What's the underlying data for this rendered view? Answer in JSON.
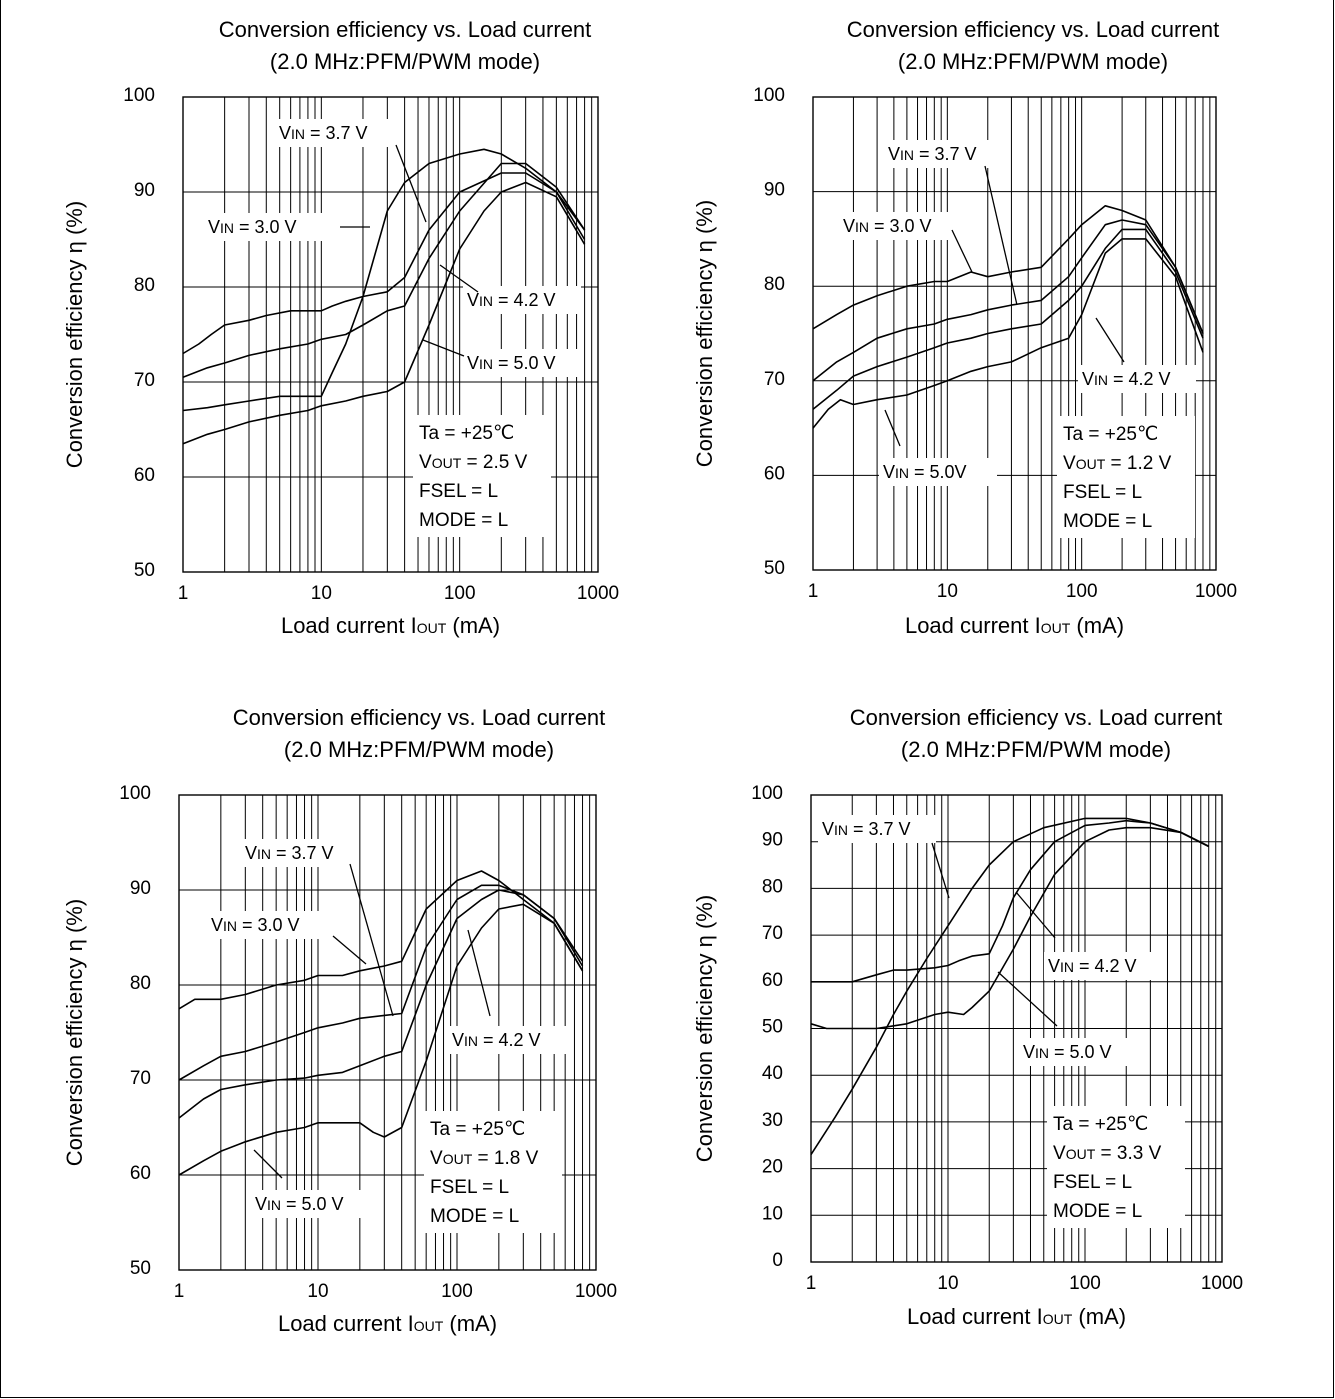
{
  "chart_data": [
    {
      "type": "line",
      "title": "Conversion efficiency vs. Load current",
      "subtitle": "(2.0 MHz:PFM/PWM mode)",
      "xlabel": "Load current IOUT (mA)",
      "xlabel_parts": {
        "pre": "Load current I",
        "sub": "OUT",
        "post": " (mA)"
      },
      "ylabel": "Conversion efficiency η (%)",
      "x_scale": "log",
      "xlim": [
        1,
        1000
      ],
      "ylim": [
        50,
        100
      ],
      "x_ticks": [
        1,
        10,
        100,
        1000
      ],
      "x_tick_labels": [
        "1",
        "10",
        "100",
        "1000"
      ],
      "y_ticks": [
        50,
        60,
        70,
        80,
        90,
        100
      ],
      "y_tick_labels": [
        "50",
        "60",
        "70",
        "80",
        "90",
        "100"
      ],
      "grid": true,
      "conditions": [
        {
          "pre": "Ta = +25℃",
          "sub": "",
          "post": ""
        },
        {
          "pre": "V",
          "sub": "OUT",
          "post": " = 2.5 V"
        },
        {
          "pre": "FSEL = L",
          "sub": "",
          "post": ""
        },
        {
          "pre": "MODE = L",
          "sub": "",
          "post": ""
        }
      ],
      "series": [
        {
          "name": "VIN = 3.0 V",
          "label": {
            "pre": "V",
            "sub": "IN",
            "post": " = 3.0 V"
          },
          "x": [
            1,
            1.3,
            1.6,
            2,
            3,
            4,
            6,
            9,
            10,
            12,
            15,
            20,
            30,
            40,
            60,
            100,
            200,
            300,
            500,
            800
          ],
          "y": [
            73,
            74,
            75,
            76,
            76.5,
            77,
            77.5,
            77.5,
            77.5,
            78,
            78.5,
            79,
            79.5,
            81,
            86,
            90,
            92,
            92,
            90,
            86
          ]
        },
        {
          "name": "VIN = 3.7 V",
          "label": {
            "pre": "V",
            "sub": "IN",
            "post": " = 3.7 V"
          },
          "x": [
            1,
            1.5,
            2,
            3,
            5,
            8,
            10,
            12,
            15,
            20,
            30,
            40,
            60,
            100,
            150,
            200,
            300,
            500,
            800
          ],
          "y": [
            67,
            67.3,
            67.6,
            68,
            68.5,
            68.5,
            68.5,
            71,
            74,
            79,
            88,
            91,
            93,
            94,
            94.5,
            94,
            92.5,
            90,
            85
          ]
        },
        {
          "name": "VIN = 4.2 V",
          "label": {
            "pre": "V",
            "sub": "IN",
            "post": " = 4.2 V"
          },
          "x": [
            1,
            1.5,
            2,
            3,
            5,
            8,
            10,
            15,
            20,
            30,
            40,
            60,
            100,
            200,
            300,
            500,
            800
          ],
          "y": [
            70.5,
            71.5,
            72,
            72.8,
            73.5,
            74,
            74.5,
            75,
            76,
            77.5,
            78,
            83,
            88,
            93,
            93,
            90.5,
            86
          ]
        },
        {
          "name": "VIN = 5.0 V",
          "label": {
            "pre": "V",
            "sub": "IN",
            "post": " = 5.0 V"
          },
          "x": [
            1,
            1.5,
            2,
            3,
            5,
            8,
            10,
            15,
            20,
            30,
            40,
            60,
            100,
            150,
            200,
            300,
            500,
            800
          ],
          "y": [
            63.5,
            64.5,
            65,
            65.8,
            66.5,
            67,
            67.5,
            68,
            68.5,
            69,
            70,
            76,
            84,
            88,
            90,
            91,
            89.5,
            84.5
          ]
        }
      ]
    },
    {
      "type": "line",
      "title": "Conversion efficiency vs. Load current",
      "subtitle": "(2.0 MHz:PFM/PWM mode)",
      "xlabel": "Load current IOUT (mA)",
      "xlabel_parts": {
        "pre": "Load current I",
        "sub": "OUT",
        "post": " (mA)"
      },
      "ylabel": "Conversion efficiency η (%)",
      "x_scale": "log",
      "xlim": [
        1,
        1000
      ],
      "ylim": [
        50,
        100
      ],
      "x_ticks": [
        1,
        10,
        100,
        1000
      ],
      "x_tick_labels": [
        "1",
        "10",
        "100",
        "1000"
      ],
      "y_ticks": [
        50,
        60,
        70,
        80,
        90,
        100
      ],
      "y_tick_labels": [
        "50",
        "60",
        "70",
        "80",
        "90",
        "100"
      ],
      "grid": true,
      "conditions": [
        {
          "pre": "Ta = +25℃",
          "sub": "",
          "post": ""
        },
        {
          "pre": "V",
          "sub": "OUT",
          "post": " = 1.2 V"
        },
        {
          "pre": "FSEL = L",
          "sub": "",
          "post": ""
        },
        {
          "pre": "MODE = L",
          "sub": "",
          "post": ""
        }
      ],
      "series": [
        {
          "name": "VIN = 3.0 V",
          "label": {
            "pre": "V",
            "sub": "IN",
            "post": " = 3.0 V"
          },
          "x": [
            1,
            1.5,
            2,
            3,
            5,
            8,
            10,
            15,
            20,
            30,
            50,
            80,
            100,
            150,
            200,
            300,
            500,
            800
          ],
          "y": [
            75.5,
            77,
            78,
            79,
            80,
            80.5,
            80.5,
            81.5,
            81,
            81.5,
            82,
            85,
            86.5,
            88.5,
            88,
            87,
            82,
            75
          ]
        },
        {
          "name": "VIN = 3.7 V",
          "label": {
            "pre": "V",
            "sub": "IN",
            "post": " = 3.7 V"
          },
          "x": [
            1,
            1.5,
            2,
            3,
            5,
            8,
            10,
            15,
            20,
            30,
            50,
            80,
            100,
            150,
            200,
            300,
            500,
            800
          ],
          "y": [
            70,
            72,
            73,
            74.5,
            75.5,
            76,
            76.5,
            77,
            77.5,
            78,
            78.5,
            81,
            83,
            86.5,
            87,
            86.5,
            82,
            75
          ]
        },
        {
          "name": "VIN = 4.2 V",
          "label": {
            "pre": "V",
            "sub": "IN",
            "post": " = 4.2 V"
          },
          "x": [
            1,
            1.5,
            2,
            3,
            5,
            8,
            10,
            15,
            20,
            30,
            50,
            80,
            100,
            150,
            200,
            300,
            500,
            800
          ],
          "y": [
            67,
            69,
            70.5,
            71.5,
            72.5,
            73.5,
            74,
            74.5,
            75,
            75.5,
            76,
            78.5,
            80,
            84,
            86,
            86,
            81.5,
            74.5
          ]
        },
        {
          "name": "VIN = 5.0V",
          "label": {
            "pre": "V",
            "sub": "IN",
            "post": " = 5.0V"
          },
          "x": [
            1,
            1.3,
            1.6,
            2,
            3,
            5,
            8,
            10,
            15,
            20,
            30,
            50,
            80,
            100,
            150,
            200,
            300,
            500,
            800
          ],
          "y": [
            65,
            67,
            68,
            67.5,
            68,
            68.5,
            69.5,
            70,
            71,
            71.5,
            72,
            73.5,
            74.5,
            77,
            83.5,
            85,
            85,
            81,
            73
          ]
        }
      ]
    },
    {
      "type": "line",
      "title": "Conversion efficiency vs. Load current",
      "subtitle": "(2.0 MHz:PFM/PWM mode)",
      "xlabel": "Load current IOUT (mA)",
      "xlabel_parts": {
        "pre": "Load current I",
        "sub": "OUT",
        "post": " (mA)"
      },
      "ylabel": "Conversion efficiency η (%)",
      "x_scale": "log",
      "xlim": [
        1,
        1000
      ],
      "ylim": [
        50,
        100
      ],
      "x_ticks": [
        1,
        10,
        100,
        1000
      ],
      "x_tick_labels": [
        "1",
        "10",
        "100",
        "1000"
      ],
      "y_ticks": [
        50,
        60,
        70,
        80,
        90,
        100
      ],
      "y_tick_labels": [
        "50",
        "60",
        "70",
        "80",
        "90",
        "100"
      ],
      "grid": true,
      "conditions": [
        {
          "pre": "Ta = +25℃",
          "sub": "",
          "post": ""
        },
        {
          "pre": "V",
          "sub": "OUT",
          "post": " = 1.8 V"
        },
        {
          "pre": "FSEL = L",
          "sub": "",
          "post": ""
        },
        {
          "pre": "MODE = L",
          "sub": "",
          "post": ""
        }
      ],
      "series": [
        {
          "name": "VIN = 3.0 V",
          "label": {
            "pre": "V",
            "sub": "IN",
            "post": " = 3.0 V"
          },
          "x": [
            1,
            1.3,
            2,
            3,
            5,
            8,
            10,
            15,
            20,
            30,
            40,
            60,
            100,
            150,
            200,
            300,
            500,
            800
          ],
          "y": [
            77.5,
            78.5,
            78.5,
            79,
            80,
            80.5,
            81,
            81,
            81.5,
            82,
            82.5,
            88,
            91,
            92,
            91,
            89,
            86.5,
            81.5
          ]
        },
        {
          "name": "VIN = 3.7 V",
          "label": {
            "pre": "V",
            "sub": "IN",
            "post": " = 3.7 V"
          },
          "x": [
            1,
            1.5,
            2,
            3,
            5,
            8,
            10,
            15,
            20,
            30,
            40,
            60,
            100,
            150,
            200,
            300,
            500,
            800
          ],
          "y": [
            70,
            71.5,
            72.5,
            73,
            74,
            75,
            75.5,
            76,
            76.5,
            76.8,
            77,
            84,
            89,
            90.5,
            90.5,
            89.5,
            87,
            82.5
          ]
        },
        {
          "name": "VIN = 4.2 V",
          "label": {
            "pre": "V",
            "sub": "IN",
            "post": " = 4.2 V"
          },
          "x": [
            1,
            1.5,
            2,
            3,
            5,
            8,
            10,
            15,
            20,
            30,
            40,
            60,
            100,
            150,
            200,
            300,
            500,
            800
          ],
          "y": [
            66,
            68,
            69,
            69.5,
            70,
            70.2,
            70.5,
            70.8,
            71.5,
            72.5,
            73,
            80,
            87,
            89,
            90,
            89.5,
            87,
            82
          ]
        },
        {
          "name": "VIN = 5.0 V",
          "label": {
            "pre": "V",
            "sub": "IN",
            "post": " = 5.0 V"
          },
          "x": [
            1,
            1.5,
            2,
            3,
            5,
            8,
            10,
            15,
            20,
            25,
            30,
            40,
            60,
            100,
            150,
            200,
            300,
            500,
            800
          ],
          "y": [
            60,
            61.5,
            62.5,
            63.5,
            64.5,
            65,
            65.5,
            65.5,
            65.5,
            64.5,
            64,
            65,
            72,
            82,
            86,
            88,
            88.5,
            86.5,
            81.5
          ]
        }
      ]
    },
    {
      "type": "line",
      "title": "Conversion efficiency vs. Load current",
      "subtitle": "(2.0 MHz:PFM/PWM mode)",
      "xlabel": "Load current IOUT (mA)",
      "xlabel_parts": {
        "pre": "Load current I",
        "sub": "OUT",
        "post": " (mA)"
      },
      "ylabel": "Conversion efficiency η (%)",
      "x_scale": "log",
      "xlim": [
        1,
        1000
      ],
      "ylim": [
        0,
        100
      ],
      "x_ticks": [
        1,
        10,
        100,
        1000
      ],
      "x_tick_labels": [
        "1",
        "10",
        "100",
        "1000"
      ],
      "y_ticks": [
        0,
        10,
        20,
        30,
        40,
        50,
        60,
        70,
        80,
        90,
        100
      ],
      "y_tick_labels": [
        "0",
        "10",
        "20",
        "30",
        "40",
        "50",
        "60",
        "70",
        "80",
        "90",
        "100"
      ],
      "grid": true,
      "conditions": [
        {
          "pre": "Ta = +25℃",
          "sub": "",
          "post": ""
        },
        {
          "pre": "V",
          "sub": "OUT",
          "post": " = 3.3 V"
        },
        {
          "pre": "FSEL = L",
          "sub": "",
          "post": ""
        },
        {
          "pre": "MODE = L",
          "sub": "",
          "post": ""
        }
      ],
      "series": [
        {
          "name": "VIN = 3.7 V",
          "label": {
            "pre": "V",
            "sub": "IN",
            "post": " = 3.7 V"
          },
          "x": [
            1,
            1.5,
            2,
            3,
            4,
            5,
            7,
            10,
            15,
            20,
            30,
            50,
            100,
            200,
            300,
            500,
            800
          ],
          "y": [
            23,
            31,
            37,
            46,
            53,
            58,
            65,
            72,
            80,
            85,
            90,
            93,
            95,
            95,
            94,
            92,
            89
          ]
        },
        {
          "name": "VIN = 4.2 V",
          "label": {
            "pre": "V",
            "sub": "IN",
            "post": " = 4.2 V"
          },
          "x": [
            1,
            1.5,
            2,
            3,
            4,
            5,
            8,
            10,
            12,
            15,
            20,
            25,
            30,
            40,
            60,
            100,
            150,
            200,
            300,
            500,
            800
          ],
          "y": [
            60,
            60,
            60,
            61.5,
            62.5,
            62.5,
            63,
            63.5,
            64.5,
            65.5,
            66,
            72,
            78,
            84,
            90,
            93.5,
            94,
            94.5,
            94,
            92,
            89
          ]
        },
        {
          "name": "VIN = 5.0 V",
          "label": {
            "pre": "V",
            "sub": "IN",
            "post": " = 5.0 V"
          },
          "x": [
            1,
            1.3,
            1.6,
            2,
            3,
            5,
            8,
            10,
            13,
            15,
            20,
            30,
            40,
            60,
            100,
            150,
            200,
            300,
            500,
            800
          ],
          "y": [
            51,
            50,
            50,
            50,
            50,
            51,
            53,
            53.5,
            53,
            54.5,
            58,
            67,
            74,
            83,
            90,
            92.5,
            93,
            93,
            92,
            89
          ]
        }
      ]
    }
  ]
}
